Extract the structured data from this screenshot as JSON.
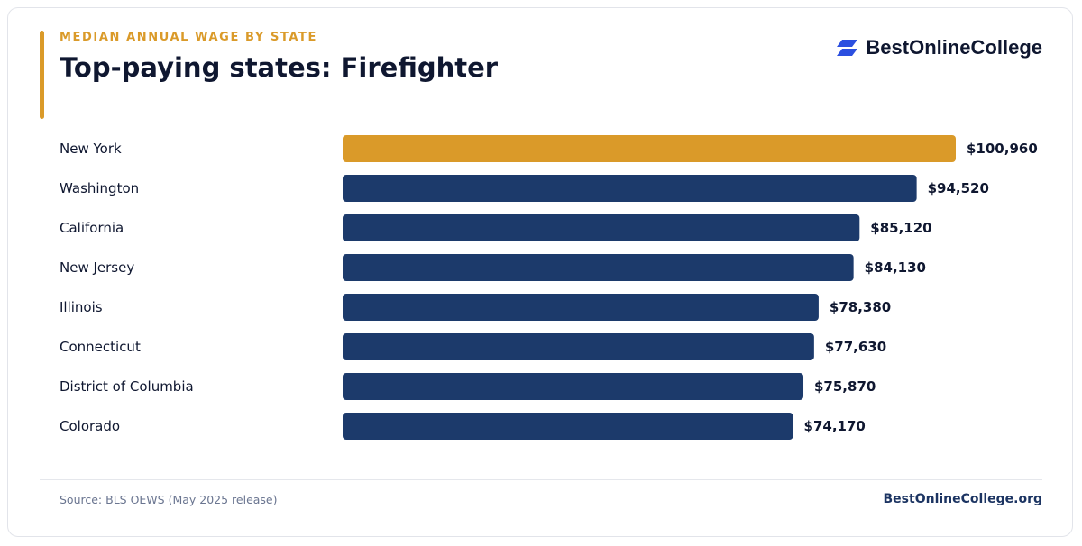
{
  "header": {
    "kicker": "MEDIAN ANNUAL WAGE BY STATE",
    "title": "Top-paying states: Firefighter"
  },
  "brand": {
    "logo_icon": "stacked-parallelogram-logo-icon",
    "name": "BestOnlineCollege"
  },
  "footer": {
    "source": "Source: BLS OEWS (May 2025 release)",
    "site": "BestOnlineCollege.org"
  },
  "colors": {
    "accent": "#DA9A29",
    "primary_bar": "#1C3A6B",
    "highlight_bar": "#DA9A29",
    "text_dark": "#0F1730",
    "logo_blue": "#2B4FE0"
  },
  "chart_data": {
    "type": "bar",
    "orientation": "horizontal",
    "categories": [
      "New York",
      "Washington",
      "California",
      "New Jersey",
      "Illinois",
      "Connecticut",
      "District of Columbia",
      "Colorado"
    ],
    "values": [
      100960,
      94520,
      85120,
      84130,
      78380,
      77630,
      75870,
      74170
    ],
    "value_labels": [
      "$100,960",
      "$94,520",
      "$85,120",
      "$84,130",
      "$78,380",
      "$77,630",
      "$75,870",
      "$74,170"
    ],
    "highlight_index": 0,
    "xlim": [
      0,
      100960
    ],
    "grid": false,
    "legend": "none"
  }
}
